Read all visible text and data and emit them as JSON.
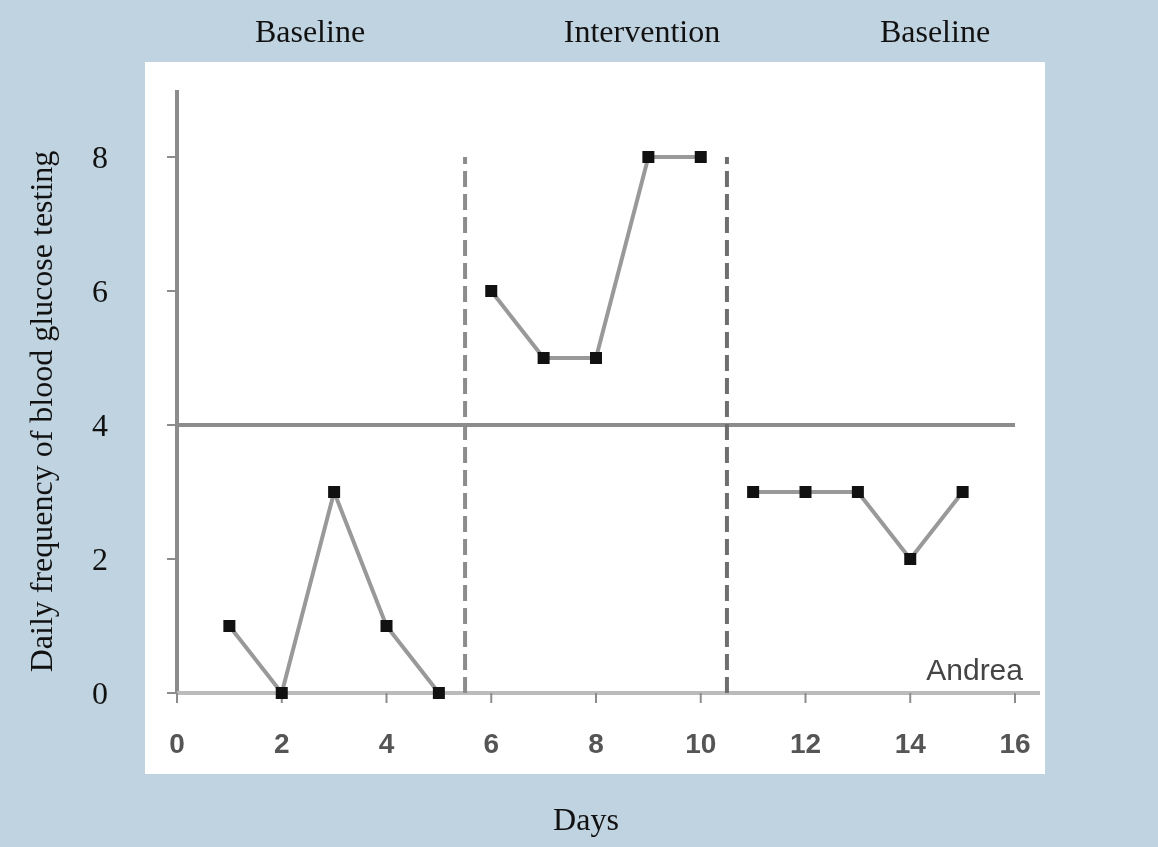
{
  "chart_data": {
    "type": "line",
    "xlabel": "Days",
    "ylabel": "Daily frequency of blood glucose testing",
    "annotations": [
      "Baseline",
      "Intervention",
      "Baseline",
      "Andrea"
    ],
    "xlim": [
      0,
      16
    ],
    "xticks": [
      0,
      2,
      4,
      6,
      8,
      10,
      12,
      14,
      16
    ],
    "ylim": [
      0,
      9
    ],
    "yticks": [
      0,
      2,
      4,
      6,
      8
    ],
    "marker": "square",
    "line_style": "solid",
    "grid": false,
    "ref_lines": [
      {
        "axis": "y",
        "value": 4,
        "color": "#8c8c8c",
        "line_style": "solid"
      },
      {
        "axis": "x",
        "value": 5.5,
        "color": "#8c8c8c",
        "line_style": "dashed"
      },
      {
        "axis": "x",
        "value": 10.5,
        "color": "#6e6e6e",
        "line_style": "dashed"
      }
    ],
    "series": [
      {
        "color": "#999999",
        "x": [
          1,
          2,
          3,
          4,
          5
        ],
        "values": [
          1,
          0,
          3,
          1,
          0
        ]
      },
      {
        "color": "#999999",
        "x": [
          6,
          7,
          8,
          9,
          10
        ],
        "values": [
          6,
          5,
          5,
          8,
          8
        ]
      },
      {
        "color": "#999999",
        "x": [
          11,
          12,
          13,
          14,
          15
        ],
        "values": [
          3,
          3,
          3,
          2,
          3
        ]
      }
    ]
  }
}
